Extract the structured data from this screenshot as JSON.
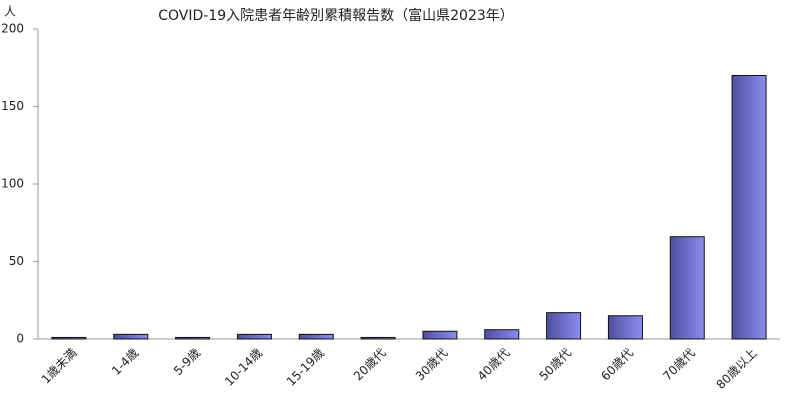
{
  "chart_data": {
    "type": "bar",
    "title": "COVID-19入院患者年齢別累積報告数（富山県2023年）",
    "y_label": "人",
    "categories": [
      "1歳未満",
      "1-4歳",
      "5-9歳",
      "10-14歳",
      "15-19歳",
      "20歳代",
      "30歳代",
      "40歳代",
      "50歳代",
      "60歳代",
      "70歳代",
      "80歳以上"
    ],
    "values": [
      1,
      3,
      1,
      3,
      3,
      1,
      5,
      6,
      17,
      15,
      66,
      170
    ],
    "color": "#8c8cf2",
    "ylim": [
      0,
      200
    ],
    "yticks": [
      0,
      50,
      100,
      150,
      200
    ],
    "grid": false
  }
}
